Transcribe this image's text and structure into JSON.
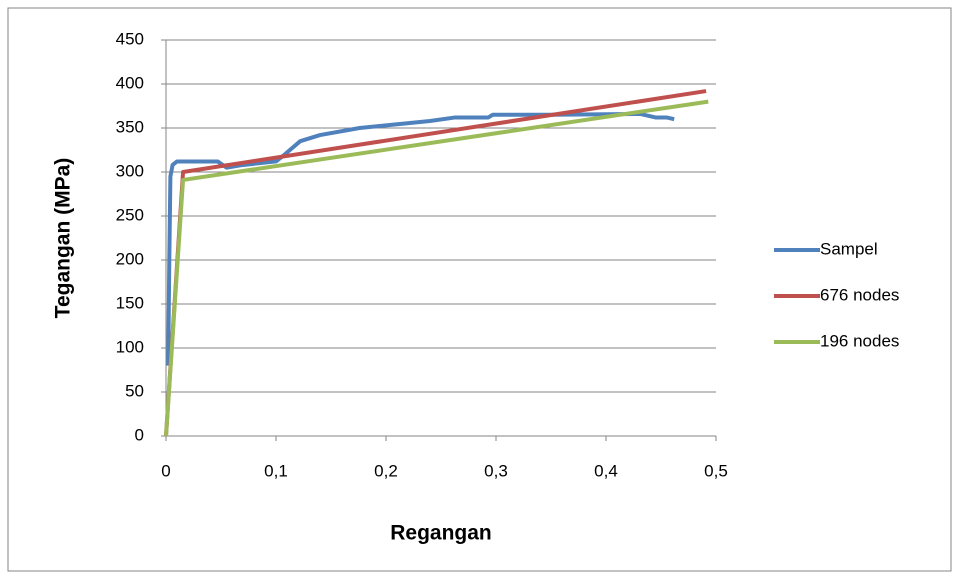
{
  "chart_data": {
    "type": "line",
    "x_label": "Regangan",
    "y_label": "Tegangan (MPa)",
    "xlim": [
      0,
      0.5
    ],
    "xticks": [
      0,
      {
        "value": 0.1,
        "label": "0,1"
      },
      {
        "value": 0.2,
        "label": "0,2"
      },
      {
        "value": 0.3,
        "label": "0,3"
      },
      {
        "value": 0.4,
        "label": "0,4"
      },
      {
        "value": 0.5,
        "label": "0,5"
      }
    ],
    "ylim": [
      0,
      450
    ],
    "yticks": [
      0,
      50,
      100,
      150,
      200,
      250,
      300,
      350,
      400,
      450
    ],
    "grid": true,
    "legend": "right",
    "series": [
      {
        "name": "Sampel",
        "color": "#4f81bd",
        "x": [
          0.002,
          0.003,
          0.004,
          0.006,
          0.01,
          0.047,
          0.055,
          0.07,
          0.1,
          0.108,
          0.122,
          0.14,
          0.176,
          0.2,
          0.24,
          0.263,
          0.293,
          0.297,
          0.35,
          0.431,
          0.445,
          0.455,
          0.462
        ],
        "values": [
          80,
          200,
          295,
          308,
          312,
          312,
          305,
          308,
          312,
          320,
          335,
          342,
          350,
          353,
          358,
          362,
          362,
          365,
          365,
          366,
          362,
          362,
          360
        ]
      },
      {
        "name": "676 nodes",
        "color": "#c0504d",
        "x": [
          0,
          0.0155,
          0.491
        ],
        "values": [
          0,
          300,
          392
        ]
      },
      {
        "name": "196 nodes",
        "color": "#9bbb59",
        "x": [
          0,
          0.0155,
          0.493
        ],
        "values": [
          0,
          291,
          380
        ]
      }
    ]
  }
}
